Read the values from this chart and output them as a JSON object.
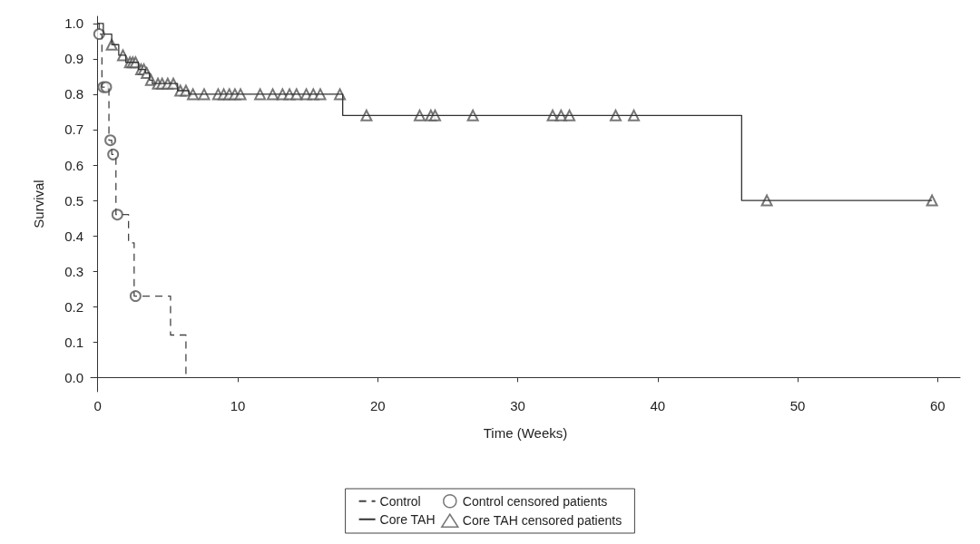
{
  "chart_data": {
    "type": "step",
    "xlabel": "Time (Weeks)",
    "ylabel": "Survival",
    "xlim": [
      -0.5,
      61.6
    ],
    "xticks": [
      0,
      10,
      20,
      30,
      40,
      50,
      60
    ],
    "ylim": [
      -0.04,
      1.02
    ],
    "yticks": [
      {
        "value": 0,
        "label": "0.0"
      },
      {
        "value": 0.1,
        "label": "0.1"
      },
      {
        "value": 0.2,
        "label": "0.2"
      },
      {
        "value": 0.3,
        "label": "0.3"
      },
      {
        "value": 0.4,
        "label": "0.4"
      },
      {
        "value": 0.5,
        "label": "0.5"
      },
      {
        "value": 0.6,
        "label": "0.6"
      },
      {
        "value": 0.7,
        "label": "0.7"
      },
      {
        "value": 0.8,
        "label": "0.8"
      },
      {
        "value": 0.9,
        "label": "0.9"
      },
      {
        "value": 1,
        "label": "1.0"
      }
    ],
    "grid": false,
    "legend": "bottom",
    "series": [
      {
        "name": "Control",
        "color": "#444444",
        "line_style": "dashed",
        "marker": "none",
        "x": [
          0,
          0.1,
          0.3,
          0.8,
          1.0,
          1.3,
          2.2,
          2.6,
          5.2,
          6.3
        ],
        "values": [
          1.0,
          0.97,
          0.82,
          0.67,
          0.63,
          0.46,
          0.38,
          0.23,
          0.12,
          0
        ]
      },
      {
        "name": "Control censored patients",
        "type": "scatter",
        "color": "#555555",
        "marker": "circle",
        "x": [
          0.1,
          0.4,
          0.6,
          0.9,
          1.1,
          1.4,
          2.7
        ],
        "values": [
          0.97,
          0.82,
          0.82,
          0.67,
          0.63,
          0.46,
          0.23
        ]
      },
      {
        "name": "Core TAH",
        "color": "#333333",
        "line_style": "solid",
        "marker": "none",
        "x": [
          0,
          0.4,
          1.0,
          1.5,
          2.0,
          2.9,
          3.4,
          3.7,
          3.9,
          5.7,
          6.5,
          17.5,
          46.0,
          59.6
        ],
        "values": [
          1.0,
          0.97,
          0.94,
          0.91,
          0.89,
          0.87,
          0.86,
          0.84,
          0.83,
          0.81,
          0.8,
          0.74,
          0.5,
          0.5
        ]
      },
      {
        "name": "Core TAH censored patients",
        "type": "scatter",
        "color": "#555555",
        "marker": "triangle",
        "x": [
          1.0,
          1.8,
          2.3,
          2.5,
          2.7,
          3.1,
          3.3,
          3.5,
          3.8,
          4.3,
          4.6,
          5.0,
          5.4,
          5.9,
          6.3,
          6.8,
          7.6,
          8.6,
          9.0,
          9.4,
          9.8,
          10.2,
          11.6,
          12.5,
          13.2,
          13.7,
          14.2,
          14.9,
          15.4,
          15.9,
          17.3,
          19.2,
          23.0,
          23.8,
          24.1,
          26.8,
          32.5,
          33.1,
          33.7,
          37.0,
          38.3,
          47.8,
          59.6
        ],
        "values": [
          0.94,
          0.91,
          0.89,
          0.89,
          0.89,
          0.87,
          0.87,
          0.86,
          0.84,
          0.83,
          0.83,
          0.83,
          0.83,
          0.81,
          0.81,
          0.8,
          0.8,
          0.8,
          0.8,
          0.8,
          0.8,
          0.8,
          0.8,
          0.8,
          0.8,
          0.8,
          0.8,
          0.8,
          0.8,
          0.8,
          0.8,
          0.74,
          0.74,
          0.74,
          0.74,
          0.74,
          0.74,
          0.74,
          0.74,
          0.74,
          0.74,
          0.5,
          0.5
        ]
      }
    ]
  }
}
